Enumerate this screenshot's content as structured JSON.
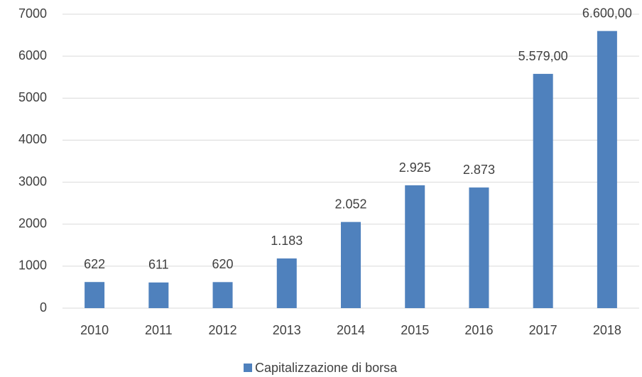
{
  "chart_data": {
    "type": "bar",
    "categories": [
      "2010",
      "2011",
      "2012",
      "2013",
      "2014",
      "2015",
      "2016",
      "2017",
      "2018"
    ],
    "series": [
      {
        "name": "Capitalizzazione di borsa",
        "color": "#4f81bd",
        "values": [
          622,
          611,
          620,
          1183,
          2052,
          2925,
          2873,
          5579,
          6600
        ],
        "value_labels": [
          "622",
          "611",
          "620",
          "1.183",
          "2.052",
          "2.925",
          "2.873",
          "5.579,00",
          "6.600,00"
        ]
      }
    ],
    "ylim": [
      0,
      7000
    ],
    "yticks": [
      0,
      1000,
      2000,
      3000,
      4000,
      5000,
      6000,
      7000
    ],
    "grid": true,
    "legend": "bottom"
  }
}
